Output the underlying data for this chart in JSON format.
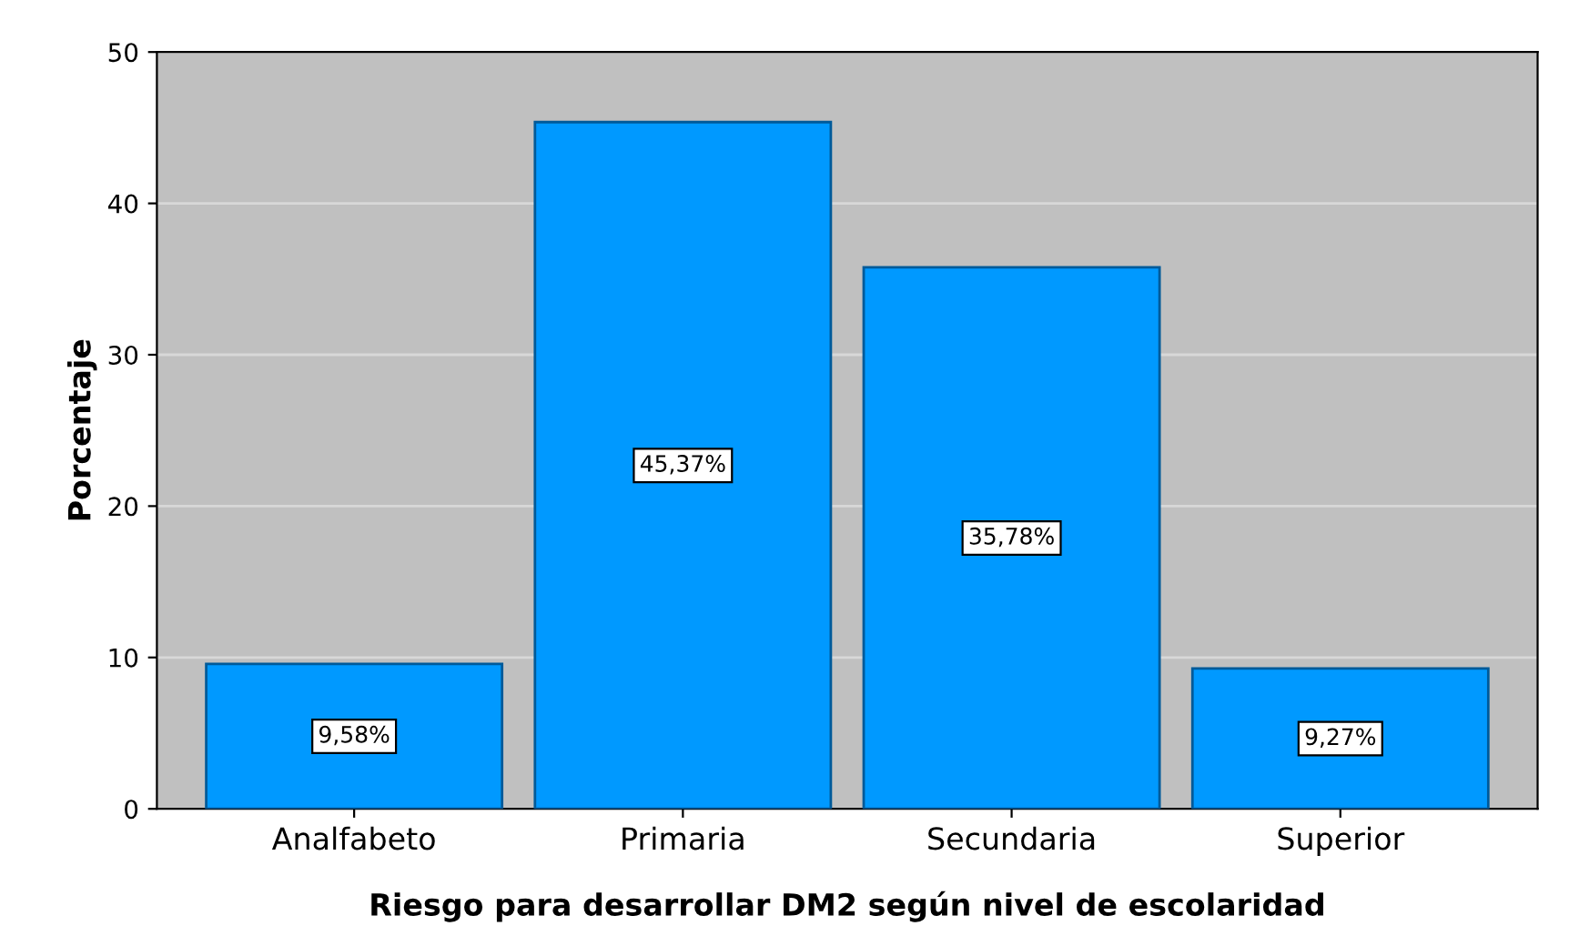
{
  "chart_data": {
    "type": "bar",
    "xlabel": "Riesgo para desarrollar DM2 según nivel de escolaridad",
    "ylabel": "Porcentaje",
    "categories": [
      "Analfabeto",
      "Primaria",
      "Secundaria",
      "Superior"
    ],
    "values": [
      9.58,
      45.37,
      35.78,
      9.27
    ],
    "value_labels": [
      "9,58%",
      "45,37%",
      "35,78%",
      "9,27%"
    ],
    "color": "#0099ff",
    "ylim": [
      0,
      50
    ],
    "yticks": [
      0,
      10,
      20,
      30,
      40,
      50
    ],
    "grid": "y"
  }
}
